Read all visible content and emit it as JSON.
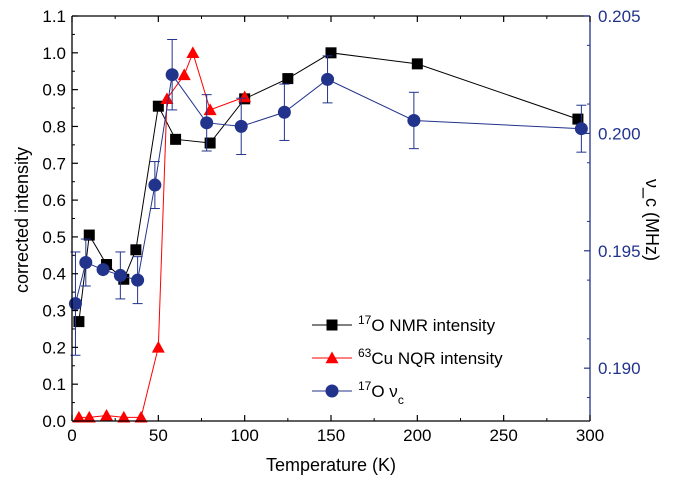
{
  "chart_data": {
    "type": "scatter",
    "xlabel": "Temperature (K)",
    "ylabel": "corrected intensity",
    "ylabel_right": "ν_c (MHz)",
    "xlim": [
      0,
      300
    ],
    "ylim": [
      0,
      1.1
    ],
    "ylim_right": [
      0.18775,
      0.205
    ],
    "x_ticks": [
      "0",
      "50",
      "100",
      "150",
      "200",
      "250",
      "300"
    ],
    "y_ticks": [
      "0.0",
      "0.1",
      "0.2",
      "0.3",
      "0.4",
      "0.5",
      "0.6",
      "0.7",
      "0.8",
      "0.9",
      "1.0",
      "1.1"
    ],
    "y_right_ticks": [
      "0.190",
      "0.195",
      "0.200",
      "0.205"
    ],
    "legend_position": "bottom-right",
    "series": [
      {
        "key": "o17-nmr",
        "legend_sup": "17",
        "legend_text": "O NMR intensity",
        "color": "#000000",
        "marker": "square",
        "axis": "left",
        "x": [
          4,
          10,
          20,
          30,
          37,
          50,
          60,
          80,
          100,
          125,
          150,
          200,
          293
        ],
        "y": [
          0.27,
          0.505,
          0.425,
          0.385,
          0.465,
          0.855,
          0.765,
          0.755,
          0.875,
          0.93,
          1.0,
          0.97,
          0.82
        ]
      },
      {
        "key": "cu63-nqr",
        "legend_sup": "63",
        "legend_text": "Cu NQR intensity",
        "color": "#ff0000",
        "marker": "triangle",
        "axis": "left",
        "x": [
          4,
          10,
          20,
          30,
          40,
          50,
          55,
          65,
          70,
          80,
          100
        ],
        "y": [
          0.01,
          0.01,
          0.015,
          0.01,
          0.01,
          0.2,
          0.875,
          0.94,
          1.0,
          0.845,
          0.88
        ]
      },
      {
        "key": "o17-nuc",
        "legend_sup": "17",
        "legend_text": "O ν",
        "legend_sub": "c",
        "color": "#22338c",
        "marker": "circle",
        "axis": "right",
        "x": [
          2,
          8,
          18,
          28,
          38,
          48,
          58,
          78,
          98,
          123,
          148,
          198,
          295
        ],
        "y": [
          0.19275,
          0.1945,
          0.1942,
          0.19395,
          0.19375,
          0.1978,
          0.2025,
          0.20045,
          0.2003,
          0.2009,
          0.2023,
          0.20055,
          0.2002
        ],
        "err": [
          0.0022,
          0.001,
          0.0,
          0.001,
          0.001,
          0.001,
          0.0015,
          0.0012,
          0.0012,
          0.0012,
          0.001,
          0.0012,
          0.001
        ]
      }
    ]
  }
}
